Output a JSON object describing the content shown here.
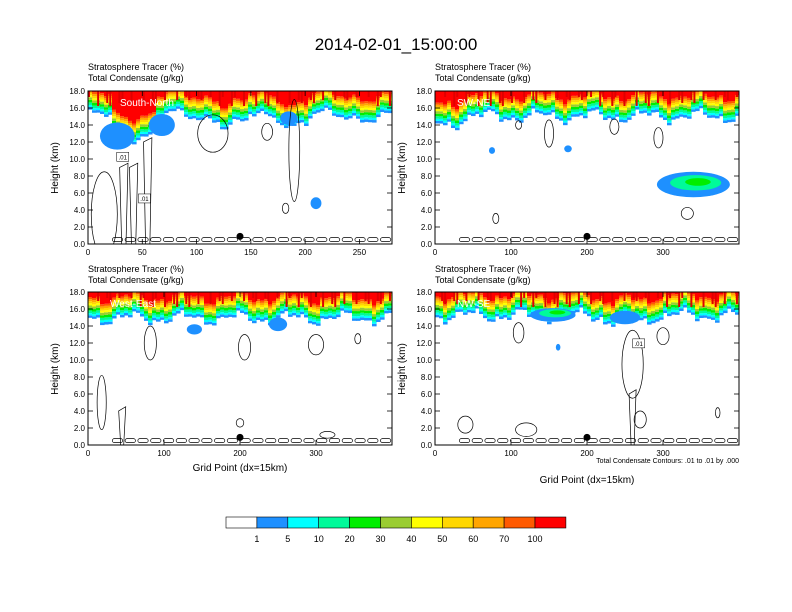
{
  "figure": {
    "title": "2014-02-01_15:00:00",
    "contour_note": "Total Condensate Contours: .01 to .01 by .000"
  },
  "colors": {
    "bins": [
      "#ffffff",
      "#1e90ff",
      "#00ffff",
      "#00fa9a",
      "#00ee00",
      "#9acd32",
      "#ffff00",
      "#ffd700",
      "#ffa500",
      "#ff5a00",
      "#ff0000"
    ],
    "marker": "#000000"
  },
  "colorbar": {
    "labels": [
      "1",
      "5",
      "10",
      "20",
      "30",
      "40",
      "50",
      "60",
      "70",
      "100"
    ]
  },
  "chart_data": [
    {
      "type": "heatmap",
      "name": "South-North",
      "subtitle1": "Stratosphere Tracer   (%)",
      "subtitle2": "Total Condensate   (g/kg)",
      "ylabel": "Height (km)",
      "xlabel": "",
      "xlim": [
        0,
        280
      ],
      "ylim": [
        0,
        18
      ],
      "xticks": [
        "0",
        "50",
        "100",
        "150",
        "200",
        "250"
      ],
      "xtick_values": [
        0,
        50,
        100,
        150,
        200,
        250
      ],
      "yticks": [
        "0.0",
        "2.0",
        "4.0",
        "6.0",
        "8.0",
        "10.0",
        "12.0",
        "14.0",
        "16.0",
        "18.0"
      ],
      "marker_x": 140,
      "contour_labels": [
        ".01",
        ".01"
      ],
      "contour_label_pos": [
        [
          32,
          10.2
        ],
        [
          52,
          5.3
        ]
      ]
    },
    {
      "type": "heatmap",
      "name": "SW-NE",
      "subtitle1": "Stratosphere Tracer   (%)",
      "subtitle2": "Total Condensate   (g/kg)",
      "ylabel": "Height (km)",
      "xlabel": "",
      "xlim": [
        0,
        400
      ],
      "ylim": [
        0,
        18
      ],
      "xticks": [
        "0",
        "100",
        "200",
        "300"
      ],
      "xtick_values": [
        0,
        100,
        200,
        300
      ],
      "yticks": [
        "0.0",
        "2.0",
        "4.0",
        "6.0",
        "8.0",
        "10.0",
        "12.0",
        "14.0",
        "16.0",
        "18.0"
      ],
      "marker_x": 200,
      "contour_labels": [],
      "contour_label_pos": []
    },
    {
      "type": "heatmap",
      "name": "West-East",
      "subtitle1": "Stratosphere Tracer   (%)",
      "subtitle2": "Total Condensate   (g/kg)",
      "ylabel": "Height (km)",
      "xlabel": "Grid Point (dx=15km)",
      "xlim": [
        0,
        400
      ],
      "ylim": [
        0,
        18
      ],
      "xticks": [
        "0",
        "100",
        "200",
        "300"
      ],
      "xtick_values": [
        0,
        100,
        200,
        300
      ],
      "yticks": [
        "0.0",
        "2.0",
        "4.0",
        "6.0",
        "8.0",
        "10.0",
        "12.0",
        "14.0",
        "16.0",
        "18.0"
      ],
      "marker_x": 200,
      "contour_labels": [],
      "contour_label_pos": []
    },
    {
      "type": "heatmap",
      "name": "NW-SE",
      "subtitle1": "Stratosphere Tracer   (%)",
      "subtitle2": "Total Condensate   (g/kg)",
      "ylabel": "Height (km)",
      "xlabel": "Grid Point (dx=15km)",
      "xlim": [
        0,
        400
      ],
      "ylim": [
        0,
        18
      ],
      "xticks": [
        "0",
        "100",
        "200",
        "300"
      ],
      "xtick_values": [
        0,
        100,
        200,
        300
      ],
      "yticks": [
        "0.0",
        "2.0",
        "4.0",
        "6.0",
        "8.0",
        "10.0",
        "12.0",
        "14.0",
        "16.0",
        "18.0"
      ],
      "marker_x": 200,
      "contour_labels": [
        ".01"
      ],
      "contour_label_pos": [
        [
          268,
          11.9
        ]
      ]
    }
  ]
}
